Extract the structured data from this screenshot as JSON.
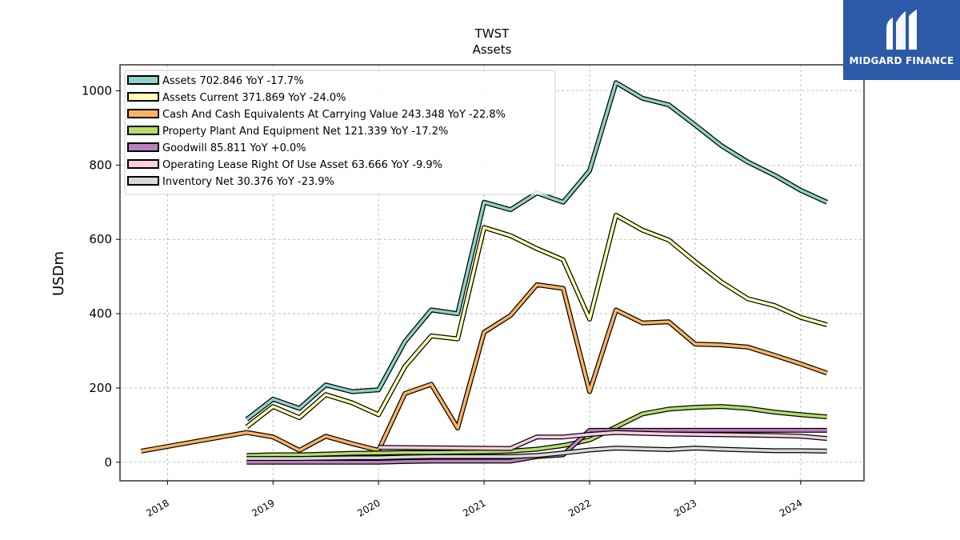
{
  "logo": {
    "text": "MIDGARD FINANCE",
    "icon": "stylized-M-logo-icon",
    "background": "#2c5aa8"
  },
  "chart_data": {
    "type": "line",
    "title": "TWST",
    "subtitle": "Assets",
    "ylabel": "USDm",
    "xlabel": "",
    "xlim": [
      2017.55,
      2024.6
    ],
    "ylim": [
      -50,
      1070
    ],
    "x_ticks": [
      2018,
      2019,
      2020,
      2021,
      2022,
      2023,
      2024
    ],
    "y_ticks": [
      0,
      200,
      400,
      600,
      800,
      1000
    ],
    "grid": true,
    "legend_position": "top-left",
    "series": [
      {
        "name": "Assets  702.846 YoY -17.7%",
        "color": "#8dd3c7",
        "points": [
          [
            2018.75,
            115
          ],
          [
            2019.0,
            170
          ],
          [
            2019.25,
            145
          ],
          [
            2019.5,
            208
          ],
          [
            2019.75,
            190
          ],
          [
            2020.0,
            195
          ],
          [
            2020.25,
            325
          ],
          [
            2020.5,
            410
          ],
          [
            2020.75,
            400
          ],
          [
            2021.0,
            700
          ],
          [
            2021.25,
            680
          ],
          [
            2021.5,
            725
          ],
          [
            2021.75,
            700
          ],
          [
            2022.0,
            785
          ],
          [
            2022.25,
            1022
          ],
          [
            2022.5,
            980
          ],
          [
            2022.75,
            962
          ],
          [
            2023.0,
            908
          ],
          [
            2023.25,
            852
          ],
          [
            2023.5,
            808
          ],
          [
            2023.75,
            773
          ],
          [
            2024.0,
            732
          ],
          [
            2024.25,
            700
          ]
        ]
      },
      {
        "name": "Assets Current  371.869 YoY -24.0%",
        "color": "#ffffb3",
        "points": [
          [
            2018.75,
            95
          ],
          [
            2019.0,
            150
          ],
          [
            2019.25,
            120
          ],
          [
            2019.5,
            182
          ],
          [
            2019.75,
            160
          ],
          [
            2020.0,
            128
          ],
          [
            2020.25,
            258
          ],
          [
            2020.5,
            340
          ],
          [
            2020.75,
            332
          ],
          [
            2021.0,
            632
          ],
          [
            2021.25,
            610
          ],
          [
            2021.5,
            575
          ],
          [
            2021.75,
            545
          ],
          [
            2022.0,
            385
          ],
          [
            2022.25,
            665
          ],
          [
            2022.5,
            625
          ],
          [
            2022.75,
            598
          ],
          [
            2023.0,
            540
          ],
          [
            2023.25,
            485
          ],
          [
            2023.5,
            440
          ],
          [
            2023.75,
            422
          ],
          [
            2024.0,
            390
          ],
          [
            2024.25,
            370
          ]
        ]
      },
      {
        "name": "Cash And Cash Equivalents At Carrying Value  243.348 YoY -22.8%",
        "color": "#fdb462",
        "points": [
          [
            2017.75,
            30
          ],
          [
            2018.75,
            80
          ],
          [
            2019.0,
            68
          ],
          [
            2019.25,
            32
          ],
          [
            2019.5,
            70
          ],
          [
            2019.75,
            50
          ],
          [
            2020.0,
            32
          ],
          [
            2020.25,
            185
          ],
          [
            2020.5,
            210
          ],
          [
            2020.75,
            92
          ],
          [
            2021.0,
            350
          ],
          [
            2021.25,
            395
          ],
          [
            2021.5,
            478
          ],
          [
            2021.75,
            468
          ],
          [
            2022.0,
            190
          ],
          [
            2022.25,
            410
          ],
          [
            2022.5,
            375
          ],
          [
            2022.75,
            378
          ],
          [
            2023.0,
            318
          ],
          [
            2023.25,
            316
          ],
          [
            2023.5,
            310
          ],
          [
            2023.75,
            288
          ],
          [
            2024.0,
            265
          ],
          [
            2024.25,
            240
          ]
        ]
      },
      {
        "name": "Property Plant And Equipment Net  121.339 YoY -17.2%",
        "color": "#b3de69",
        "points": [
          [
            2018.75,
            18
          ],
          [
            2019.0,
            20
          ],
          [
            2019.25,
            20
          ],
          [
            2019.5,
            22
          ],
          [
            2019.75,
            24
          ],
          [
            2020.0,
            25
          ],
          [
            2020.25,
            26
          ],
          [
            2020.5,
            26
          ],
          [
            2020.75,
            27
          ],
          [
            2021.0,
            28
          ],
          [
            2021.25,
            30
          ],
          [
            2021.5,
            35
          ],
          [
            2021.75,
            45
          ],
          [
            2022.0,
            60
          ],
          [
            2022.25,
            95
          ],
          [
            2022.5,
            130
          ],
          [
            2022.75,
            143
          ],
          [
            2023.0,
            148
          ],
          [
            2023.25,
            150
          ],
          [
            2023.5,
            145
          ],
          [
            2023.75,
            135
          ],
          [
            2024.0,
            128
          ],
          [
            2024.25,
            122
          ]
        ]
      },
      {
        "name": "Goodwill  85.811 YoY +0.0%",
        "color": "#bc80bd",
        "points": [
          [
            2018.75,
            0
          ],
          [
            2019.0,
            0
          ],
          [
            2019.25,
            0
          ],
          [
            2019.5,
            0
          ],
          [
            2019.75,
            0
          ],
          [
            2020.0,
            0
          ],
          [
            2020.25,
            2
          ],
          [
            2020.5,
            3
          ],
          [
            2020.75,
            3
          ],
          [
            2021.0,
            3
          ],
          [
            2021.25,
            3
          ],
          [
            2021.5,
            15
          ],
          [
            2021.75,
            20
          ],
          [
            2022.0,
            86
          ],
          [
            2022.25,
            86
          ],
          [
            2022.5,
            86
          ],
          [
            2022.75,
            86
          ],
          [
            2023.0,
            86
          ],
          [
            2023.25,
            86
          ],
          [
            2023.5,
            86
          ],
          [
            2023.75,
            86
          ],
          [
            2024.0,
            86
          ],
          [
            2024.25,
            86
          ]
        ]
      },
      {
        "name": "Operating Lease Right Of Use Asset  63.666 YoY -9.9%",
        "color": "#fccde5",
        "points": [
          [
            2020.0,
            40
          ],
          [
            2021.25,
            37
          ],
          [
            2021.5,
            68
          ],
          [
            2021.75,
            68
          ],
          [
            2022.0,
            75
          ],
          [
            2022.25,
            80
          ],
          [
            2022.5,
            78
          ],
          [
            2022.75,
            76
          ],
          [
            2023.0,
            75
          ],
          [
            2023.25,
            74
          ],
          [
            2023.5,
            73
          ],
          [
            2023.75,
            72
          ],
          [
            2024.0,
            70
          ],
          [
            2024.25,
            64
          ]
        ]
      },
      {
        "name": "Inventory Net  30.376 YoY -23.9%",
        "color": "#d9d9d9",
        "points": [
          [
            2018.75,
            10
          ],
          [
            2019.0,
            10
          ],
          [
            2019.25,
            10
          ],
          [
            2019.5,
            11
          ],
          [
            2019.75,
            12
          ],
          [
            2020.0,
            12
          ],
          [
            2020.25,
            14
          ],
          [
            2020.5,
            15
          ],
          [
            2020.75,
            15
          ],
          [
            2021.0,
            15
          ],
          [
            2021.25,
            15
          ],
          [
            2021.5,
            18
          ],
          [
            2021.75,
            25
          ],
          [
            2022.0,
            33
          ],
          [
            2022.25,
            38
          ],
          [
            2022.5,
            36
          ],
          [
            2022.75,
            34
          ],
          [
            2023.0,
            38
          ],
          [
            2023.25,
            35
          ],
          [
            2023.5,
            33
          ],
          [
            2023.75,
            31
          ],
          [
            2024.0,
            31
          ],
          [
            2024.25,
            30
          ]
        ]
      }
    ]
  }
}
